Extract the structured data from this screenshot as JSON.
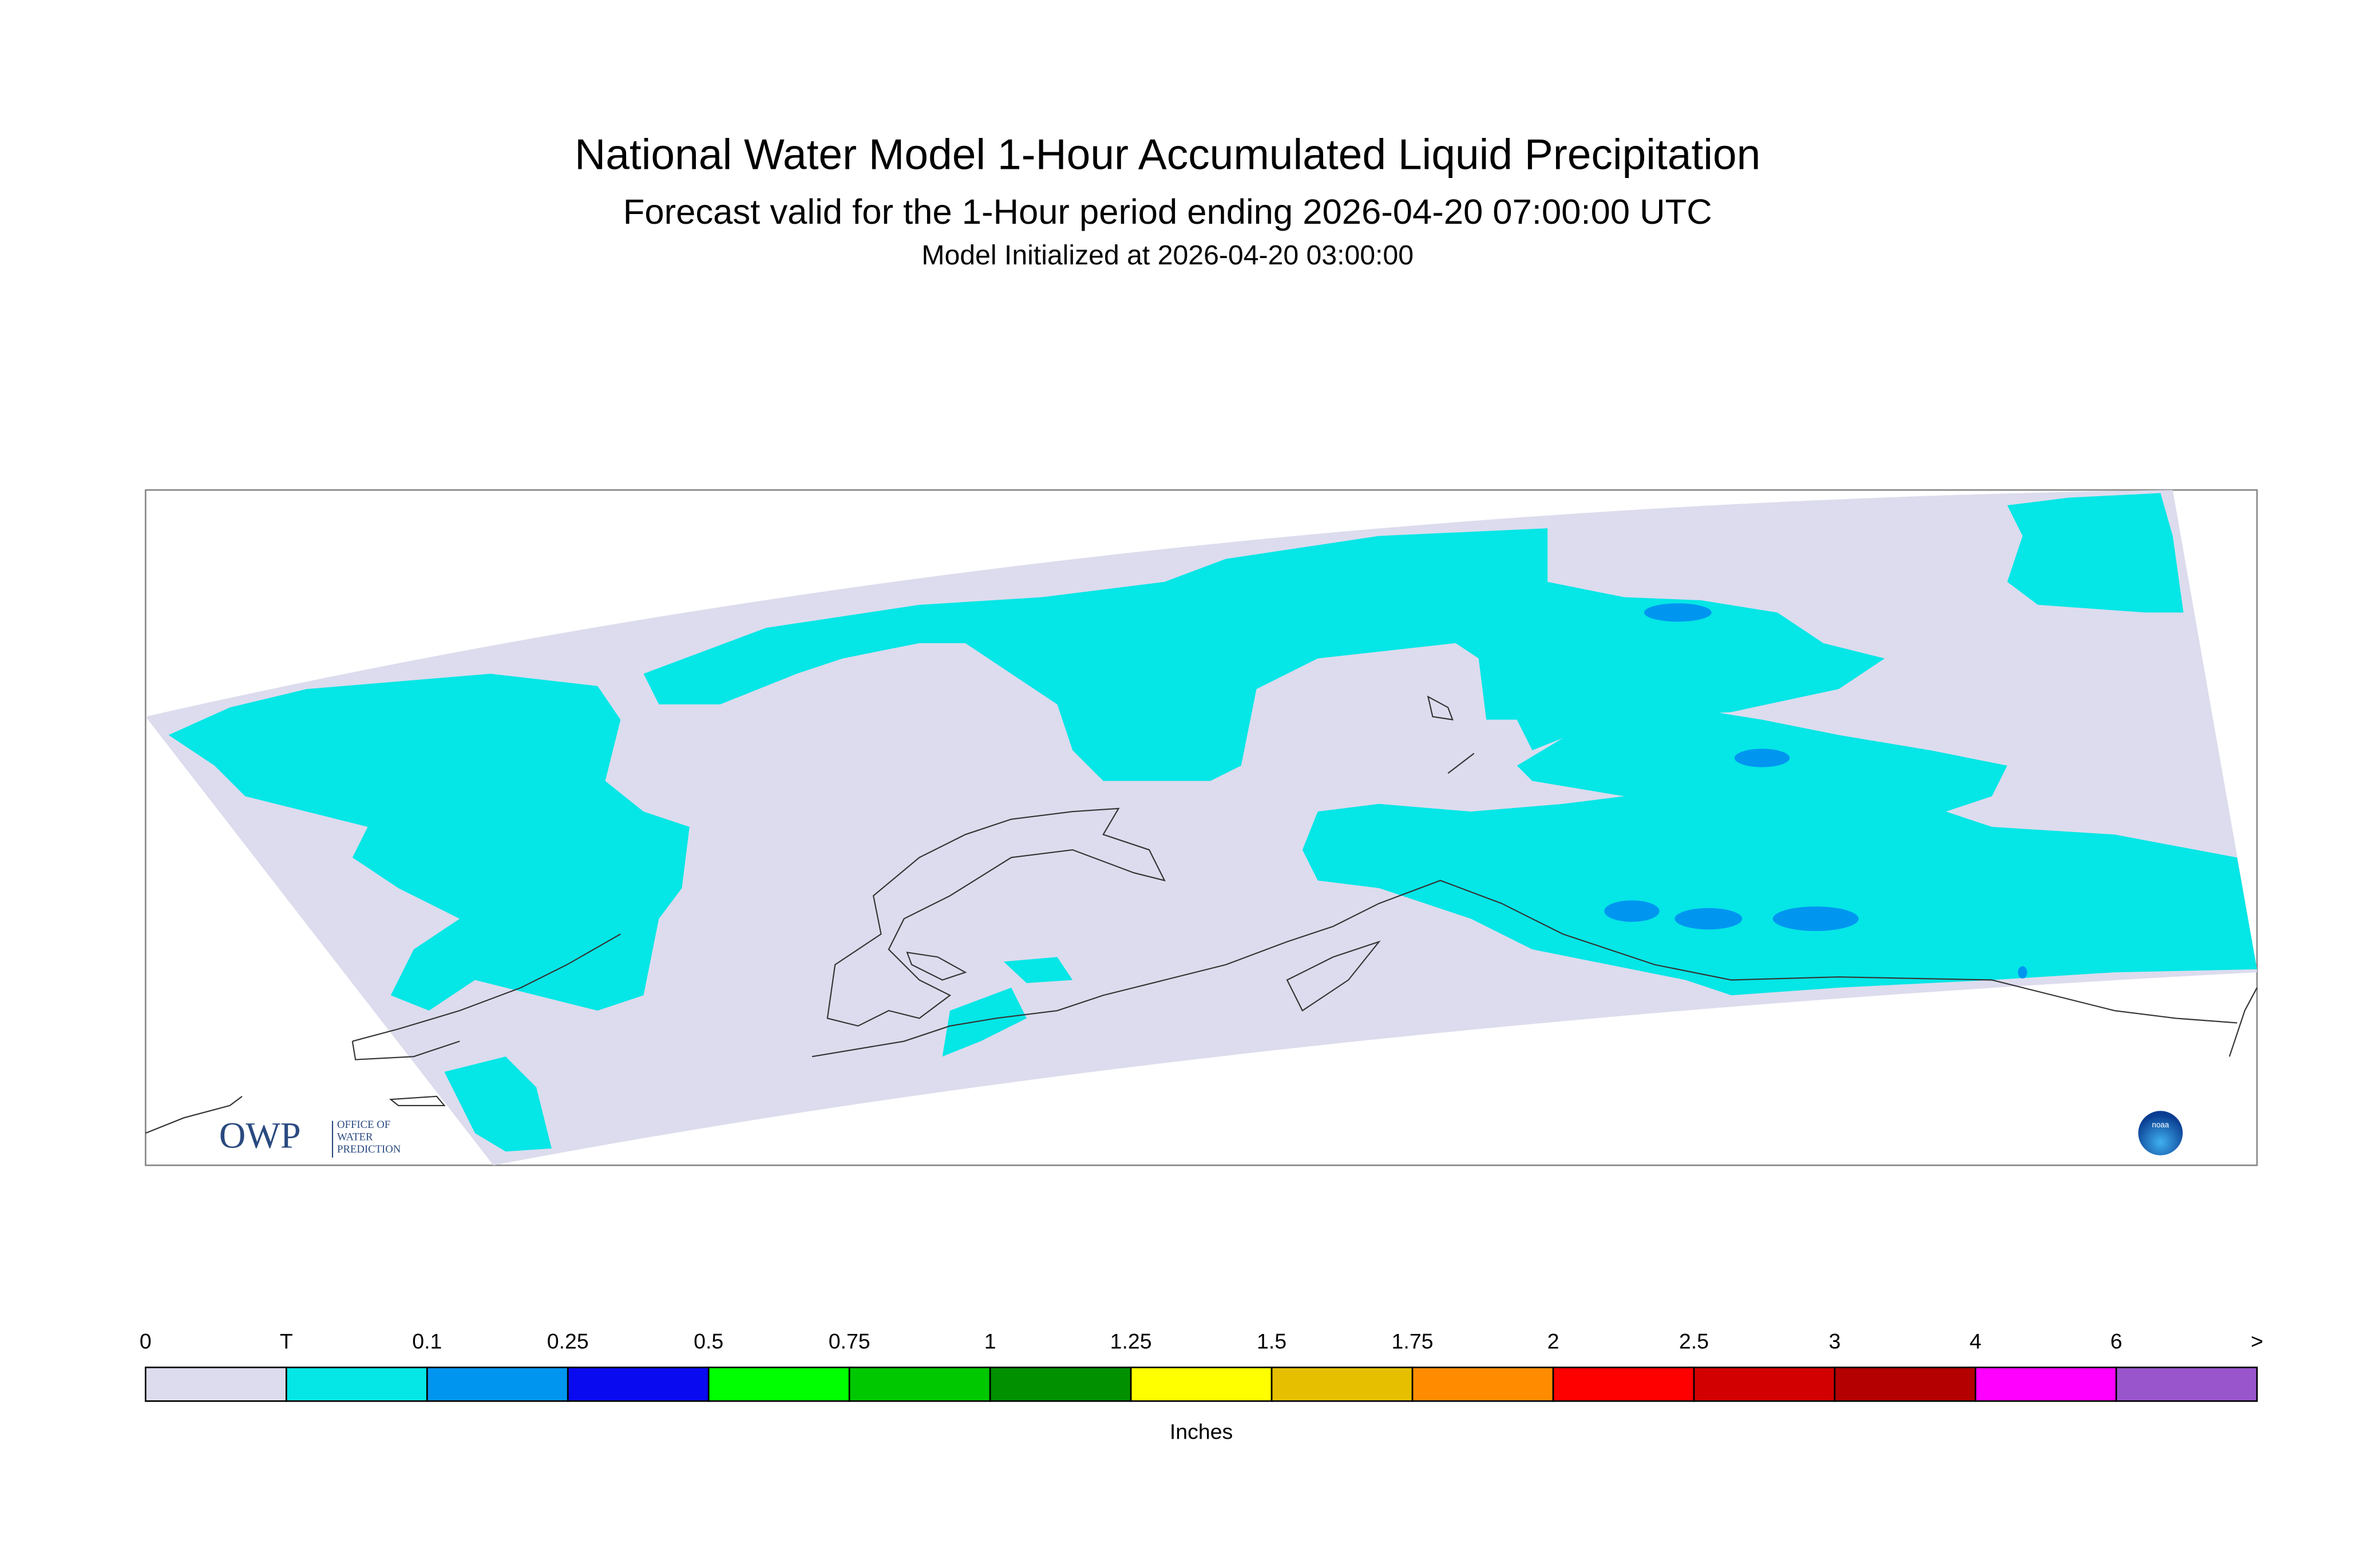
{
  "header": {
    "title": "National Water Model 1-Hour Accumulated Liquid Precipitation",
    "subtitle": "Forecast valid for the 1-Hour period ending 2026-04-20 07:00:00 UTC",
    "initialized": "Model Initialized at 2026-04-20 03:00:00"
  },
  "legend": {
    "labels": [
      "0",
      "T",
      "0.1",
      "0.25",
      "0.5",
      "0.75",
      "1",
      "1.25",
      "1.5",
      "1.75",
      "2",
      "2.5",
      "3",
      "4",
      "6",
      ">"
    ],
    "colors": [
      "#dcdcee",
      "#05e6e6",
      "#0096f0",
      "#0a0af0",
      "#00ff00",
      "#00c800",
      "#009000",
      "#ffff00",
      "#e6c000",
      "#ff8c00",
      "#ff0000",
      "#d20000",
      "#b40000",
      "#ff00ff",
      "#9955cc"
    ],
    "unit": "Inches"
  },
  "logos": {
    "owp": "OWP",
    "owp_text": [
      "OFFICE OF",
      "WATER",
      "PREDICTION"
    ],
    "noaa": "noaa"
  }
}
